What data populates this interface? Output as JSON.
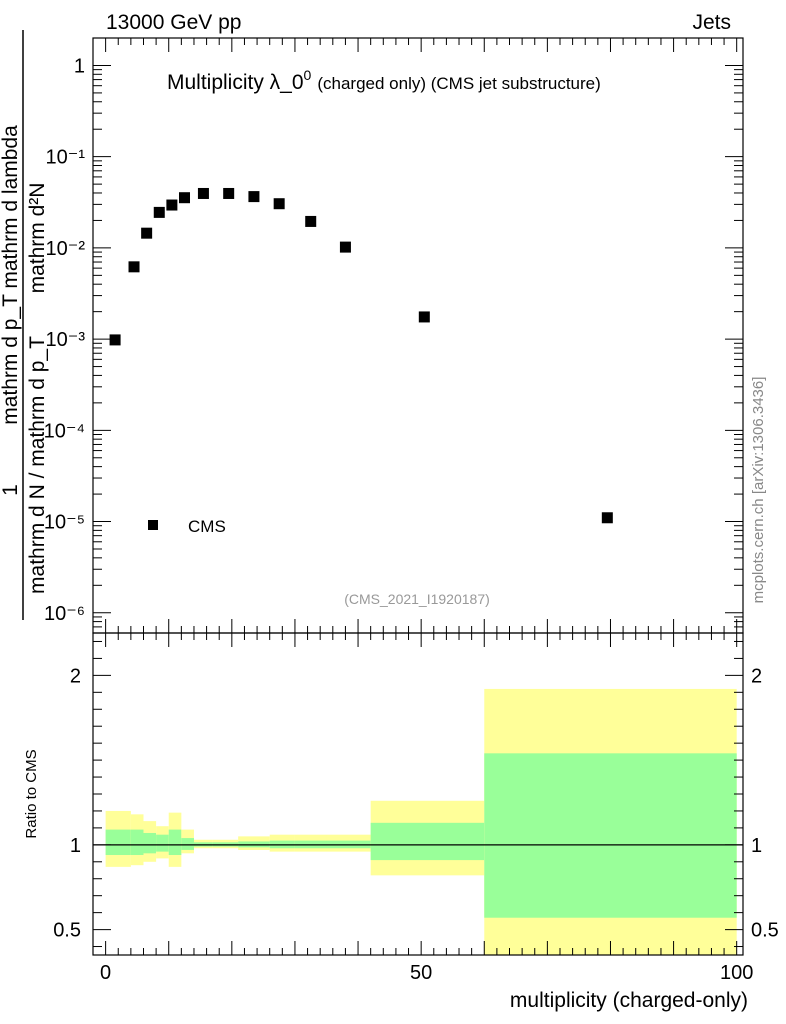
{
  "header": {
    "energy_label": "13000 GeV pp",
    "category_label": "Jets"
  },
  "chart_data": [
    {
      "type": "scatter",
      "panel": "main",
      "title": "Multiplicity λ_0",
      "title_superscript": "0",
      "subtitle": "(charged only) (CMS jet substructure)",
      "analysis_tag": "(CMS_2021_I1920187)",
      "side_label": "mcplots.cern.ch [arXiv:1306.3436]",
      "ylabel": {
        "numerator": "mathrm d²N",
        "denominator": "mathrm d p_T mathrm d lambda",
        "prefactor": "1",
        "prefactor_denominator": "mathrm d N / mathrm d p_T"
      },
      "yscale": "log",
      "ylim": [
        6e-07,
        2.0
      ],
      "xlim": [
        -2,
        101
      ],
      "ytick_labels": [
        "1",
        "10⁻¹",
        "10⁻²",
        "10⁻³",
        "10⁻⁴",
        "10⁻⁵",
        "10⁻⁶"
      ],
      "legend": {
        "position": "bottom-left",
        "entries": [
          "CMS"
        ]
      },
      "series": [
        {
          "name": "CMS",
          "marker": "square",
          "x": [
            1.5,
            4.5,
            6.5,
            8.5,
            10.5,
            12.5,
            15.5,
            19.5,
            23.5,
            27.5,
            32.5,
            38.0,
            50.5,
            79.5
          ],
          "y": [
            0.00098,
            0.0062,
            0.0145,
            0.0245,
            0.0295,
            0.0355,
            0.0395,
            0.0395,
            0.0365,
            0.0305,
            0.0195,
            0.0102,
            0.00175,
            1.1e-05
          ]
        }
      ]
    },
    {
      "type": "area",
      "panel": "ratio",
      "ylabel": "Ratio to CMS",
      "xlabel": "multiplicity (charged-only)",
      "xlim": [
        -2,
        101
      ],
      "ylim": [
        0.35,
        2.25
      ],
      "yticks": [
        0.5,
        1,
        2
      ],
      "ytick_labels": [
        "0.5",
        "1",
        "2"
      ],
      "xticks": [
        0,
        50,
        100
      ],
      "xtick_labels": [
        "0",
        "50",
        "100"
      ],
      "bands": {
        "bins": [
          [
            0,
            4
          ],
          [
            4,
            6
          ],
          [
            6,
            8
          ],
          [
            8,
            10
          ],
          [
            10,
            12
          ],
          [
            12,
            14
          ],
          [
            14,
            17
          ],
          [
            17,
            21
          ],
          [
            21,
            26
          ],
          [
            26,
            30
          ],
          [
            30,
            35
          ],
          [
            35,
            42
          ],
          [
            42,
            60
          ],
          [
            60,
            100
          ]
        ],
        "outer_color": "#ffff99",
        "inner_color": "#99ff99",
        "outer_lo": [
          0.87,
          0.88,
          0.9,
          0.92,
          0.87,
          0.95,
          0.98,
          0.98,
          0.97,
          0.96,
          0.96,
          0.96,
          0.82,
          0.35
        ],
        "outer_hi": [
          1.2,
          1.18,
          1.14,
          1.11,
          1.19,
          1.09,
          1.03,
          1.03,
          1.05,
          1.06,
          1.06,
          1.06,
          1.26,
          1.92
        ],
        "inner_lo": [
          0.94,
          0.94,
          0.95,
          0.96,
          0.94,
          0.97,
          0.99,
          0.99,
          0.985,
          0.98,
          0.98,
          0.98,
          0.91,
          0.57
        ],
        "inner_hi": [
          1.09,
          1.09,
          1.07,
          1.06,
          1.09,
          1.04,
          1.015,
          1.015,
          1.02,
          1.025,
          1.025,
          1.025,
          1.13,
          1.54
        ]
      },
      "reference_line": 1
    }
  ]
}
